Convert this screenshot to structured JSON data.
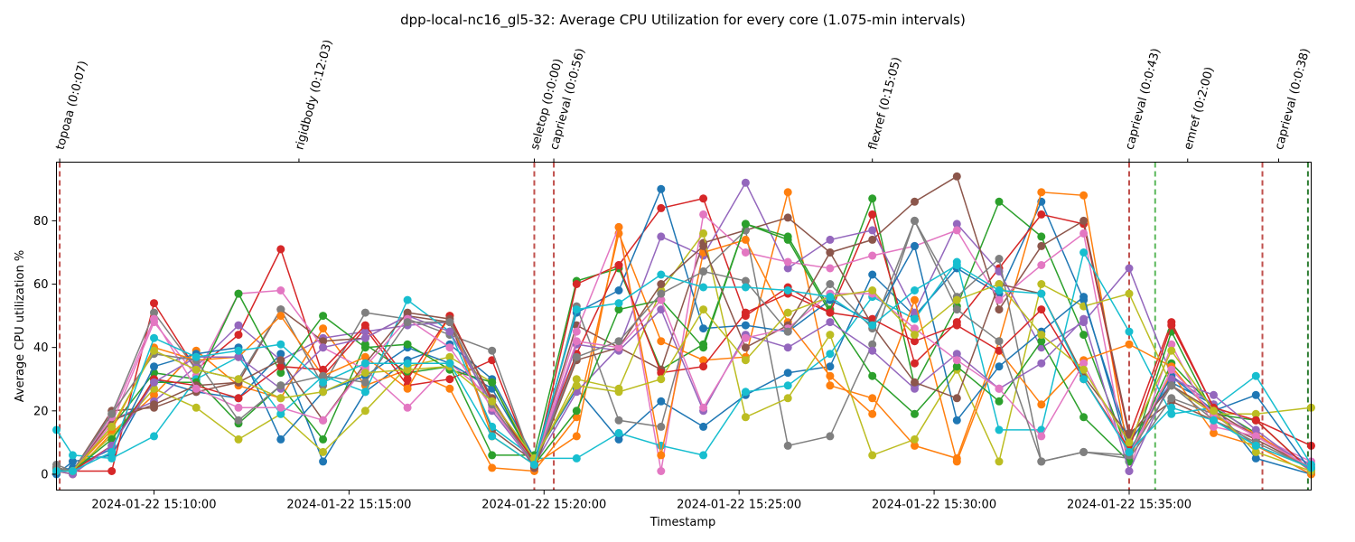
{
  "chart_data": {
    "type": "line",
    "title": "dpp-local-nc16_gl5-32: Average CPU Utilization for every core (1.075-min intervals)",
    "xlabel": "Timestamp",
    "ylabel": "Average CPU utilization %",
    "x_range": [
      "2024-01-22 15:07:30",
      "2024-01-22 15:39:40"
    ],
    "ylim": [
      -5,
      98.5
    ],
    "yticks": [
      0,
      20,
      40,
      60,
      80
    ],
    "xticks": [
      {
        "t": "2024-01-22 15:10:00",
        "label": "2024-01-22 15:10:00"
      },
      {
        "t": "2024-01-22 15:15:00",
        "label": "2024-01-22 15:15:00"
      },
      {
        "t": "2024-01-22 15:20:00",
        "label": "2024-01-22 15:20:00"
      },
      {
        "t": "2024-01-22 15:25:00",
        "label": "2024-01-22 15:25:00"
      },
      {
        "t": "2024-01-22 15:30:00",
        "label": "2024-01-22 15:30:00"
      },
      {
        "t": "2024-01-22 15:35:00",
        "label": "2024-01-22 15:35:00"
      }
    ],
    "grid": false,
    "legend": "none",
    "markers": "circle",
    "annotations": [
      {
        "label": "topoaa (0:0:07)",
        "t": "2024-01-22 15:07:35"
      },
      {
        "label": "rigidbody (0:12:03)",
        "t": "2024-01-22 15:13:43"
      },
      {
        "label": "seletop (0:0:00)",
        "t": "2024-01-22 15:19:45"
      },
      {
        "label": "caprieval (0:0:56)",
        "t": "2024-01-22 15:20:15"
      },
      {
        "label": "flexref (0:15:05)",
        "t": "2024-01-22 15:28:25"
      },
      {
        "label": "caprieval (0:0:43)",
        "t": "2024-01-22 15:35:00"
      },
      {
        "label": "emref (0:2:00)",
        "t": "2024-01-22 15:36:30"
      },
      {
        "label": "caprieval (0:0:38)",
        "t": "2024-01-22 15:38:50"
      }
    ],
    "vlines": [
      {
        "t": "2024-01-22 15:07:35",
        "color": "#c0504d"
      },
      {
        "t": "2024-01-22 15:19:45",
        "color": "#c0504d"
      },
      {
        "t": "2024-01-22 15:20:15",
        "color": "#c0504d"
      },
      {
        "t": "2024-01-22 15:35:00",
        "color": "#c0504d"
      },
      {
        "t": "2024-01-22 15:35:40",
        "color": "#5cb85c"
      },
      {
        "t": "2024-01-22 15:38:25",
        "color": "#c0504d"
      },
      {
        "t": "2024-01-22 15:39:35",
        "color": "#2e7d32"
      }
    ],
    "x": [
      "2024-01-22 15:07:30",
      "2024-01-22 15:07:55",
      "2024-01-22 15:08:55",
      "2024-01-22 15:10:00",
      "2024-01-22 15:11:05",
      "2024-01-22 15:12:10",
      "2024-01-22 15:13:15",
      "2024-01-22 15:14:20",
      "2024-01-22 15:15:25",
      "2024-01-22 15:16:30",
      "2024-01-22 15:17:35",
      "2024-01-22 15:18:40",
      "2024-01-22 15:19:45",
      "2024-01-22 15:20:50",
      "2024-01-22 15:21:55",
      "2024-01-22 15:23:00",
      "2024-01-22 15:24:05",
      "2024-01-22 15:25:10",
      "2024-01-22 15:26:15",
      "2024-01-22 15:27:20",
      "2024-01-22 15:28:25",
      "2024-01-22 15:29:30",
      "2024-01-22 15:30:35",
      "2024-01-22 15:31:40",
      "2024-01-22 15:32:45",
      "2024-01-22 15:33:50",
      "2024-01-22 15:35:00",
      "2024-01-22 15:36:05",
      "2024-01-22 15:37:10",
      "2024-01-22 15:38:15",
      "2024-01-22 15:39:40"
    ],
    "series": [
      {
        "color": "#1f77b4",
        "values": [
          0,
          4,
          6,
          30,
          26,
          24,
          38,
          4,
          26,
          36,
          41,
          30,
          5,
          27,
          11,
          23,
          15,
          25,
          32,
          34,
          63,
          50,
          65,
          57,
          86,
          55,
          10,
          29,
          22,
          5,
          0
        ]
      },
      {
        "color": "#ff7f0e",
        "values": [
          1,
          0,
          13,
          25,
          39,
          28,
          24,
          46,
          28,
          33,
          27,
          2,
          1,
          18,
          76,
          42,
          36,
          37,
          89,
          28,
          24,
          9,
          5,
          42,
          89,
          88,
          5,
          32,
          13,
          9,
          0
        ]
      },
      {
        "color": "#2ca02c",
        "values": [
          2,
          1,
          15,
          32,
          30,
          16,
          28,
          11,
          41,
          32,
          34,
          6,
          6,
          61,
          65,
          33,
          41,
          79,
          75,
          52,
          87,
          28,
          53,
          86,
          75,
          44,
          6,
          35,
          21,
          13,
          1
        ]
      },
      {
        "color": "#d62728",
        "values": [
          1,
          1,
          1,
          54,
          33,
          44,
          71,
          31,
          46,
          28,
          30,
          36,
          2,
          60,
          66,
          84,
          87,
          50,
          59,
          51,
          82,
          35,
          48,
          65,
          82,
          79,
          12,
          48,
          21,
          17,
          9
        ]
      },
      {
        "color": "#9467bd",
        "values": [
          2,
          1,
          17,
          23,
          34,
          47,
          36,
          43,
          45,
          47,
          48,
          20,
          3,
          26,
          40,
          75,
          69,
          92,
          65,
          74,
          77,
          51,
          79,
          64,
          40,
          48,
          65,
          31,
          22,
          12,
          3
        ]
      },
      {
        "color": "#8c564b",
        "values": [
          2,
          1,
          20,
          21,
          26,
          29,
          52,
          42,
          43,
          50,
          48,
          14,
          4,
          47,
          40,
          33,
          73,
          77,
          81,
          70,
          74,
          86,
          94,
          52,
          72,
          80,
          13,
          23,
          17,
          11,
          2
        ]
      },
      {
        "color": "#e377c2",
        "values": [
          1,
          1,
          16,
          48,
          31,
          57,
          58,
          40,
          33,
          21,
          35,
          24,
          3,
          45,
          78,
          1,
          82,
          70,
          67,
          65,
          69,
          72,
          77,
          55,
          66,
          76,
          1,
          41,
          15,
          12,
          4
        ]
      },
      {
        "color": "#7f7f7f",
        "values": [
          3,
          1,
          19,
          51,
          33,
          30,
          52,
          28,
          51,
          49,
          44,
          39,
          2,
          53,
          17,
          15,
          64,
          77,
          9,
          12,
          41,
          80,
          56,
          68,
          4,
          7,
          5,
          24,
          19,
          9,
          2
        ]
      },
      {
        "color": "#bcbd22",
        "values": [
          2,
          1,
          12,
          27,
          21,
          11,
          19,
          7,
          20,
          34,
          37,
          29,
          4,
          30,
          27,
          58,
          76,
          18,
          24,
          44,
          6,
          11,
          33,
          4,
          60,
          53,
          57,
          28,
          19,
          19,
          21
        ]
      },
      {
        "color": "#17becf",
        "values": [
          14,
          6,
          5,
          12,
          30,
          37,
          19,
          31,
          26,
          55,
          45,
          15,
          5,
          5,
          13,
          9,
          6,
          26,
          28,
          38,
          56,
          49,
          67,
          14,
          14,
          70,
          45,
          19,
          21,
          31,
          3
        ]
      },
      {
        "color": "#1f77b4",
        "values": [
          1,
          2,
          8,
          34,
          38,
          40,
          11,
          26,
          31,
          40,
          35,
          27,
          4,
          51,
          58,
          90,
          46,
          47,
          45,
          55,
          48,
          72,
          17,
          34,
          45,
          56,
          7,
          31,
          20,
          25,
          1
        ]
      },
      {
        "color": "#ff7f0e",
        "values": [
          2,
          1,
          14,
          40,
          36,
          37,
          50,
          31,
          37,
          27,
          50,
          12,
          3,
          12,
          78,
          6,
          70,
          74,
          48,
          31,
          19,
          55,
          4,
          39,
          22,
          36,
          41,
          34,
          18,
          13,
          1
        ]
      },
      {
        "color": "#2ca02c",
        "values": [
          1,
          1,
          11,
          29,
          29,
          57,
          32,
          50,
          40,
          41,
          33,
          29,
          3,
          20,
          52,
          55,
          40,
          79,
          74,
          51,
          31,
          19,
          34,
          23,
          42,
          18,
          4,
          45,
          19,
          17,
          1
        ]
      },
      {
        "color": "#d62728",
        "values": [
          1,
          1,
          9,
          30,
          28,
          24,
          34,
          33,
          47,
          30,
          50,
          23,
          4,
          38,
          66,
          32,
          34,
          51,
          57,
          51,
          49,
          42,
          47,
          39,
          52,
          30,
          8,
          47,
          21,
          17,
          1
        ]
      },
      {
        "color": "#9467bd",
        "values": [
          1,
          0,
          9,
          29,
          37,
          37,
          27,
          40,
          43,
          50,
          45,
          22,
          2,
          41,
          39,
          52,
          20,
          44,
          40,
          48,
          39,
          27,
          38,
          27,
          35,
          49,
          1,
          30,
          25,
          14,
          1
        ]
      },
      {
        "color": "#8c564b",
        "values": [
          2,
          1,
          17,
          22,
          28,
          29,
          36,
          17,
          35,
          51,
          49,
          24,
          2,
          36,
          40,
          60,
          72,
          40,
          47,
          70,
          47,
          29,
          24,
          60,
          57,
          31,
          12,
          28,
          20,
          12,
          2
        ]
      },
      {
        "color": "#e377c2",
        "values": [
          1,
          1,
          18,
          49,
          27,
          21,
          21,
          17,
          34,
          49,
          40,
          21,
          3,
          42,
          40,
          55,
          21,
          43,
          46,
          57,
          57,
          46,
          36,
          27,
          12,
          35,
          6,
          33,
          19,
          12,
          2
        ]
      },
      {
        "color": "#7f7f7f",
        "values": [
          2,
          1,
          19,
          38,
          36,
          17,
          28,
          31,
          29,
          48,
          48,
          22,
          3,
          37,
          42,
          57,
          64,
          61,
          45,
          60,
          46,
          80,
          52,
          42,
          4,
          7,
          6,
          28,
          17,
          10,
          2
        ]
      },
      {
        "color": "#bcbd22",
        "values": [
          1,
          1,
          15,
          39,
          33,
          30,
          24,
          26,
          32,
          33,
          34,
          23,
          5,
          28,
          26,
          30,
          52,
          36,
          51,
          56,
          58,
          44,
          55,
          60,
          44,
          33,
          10,
          39,
          20,
          7,
          1
        ]
      },
      {
        "color": "#17becf",
        "values": [
          1,
          1,
          7,
          43,
          37,
          39,
          41,
          29,
          35,
          35,
          35,
          12,
          3,
          52,
          54,
          63,
          59,
          59,
          58,
          56,
          47,
          58,
          66,
          58,
          57,
          30,
          7,
          21,
          17,
          9,
          2
        ]
      }
    ]
  }
}
